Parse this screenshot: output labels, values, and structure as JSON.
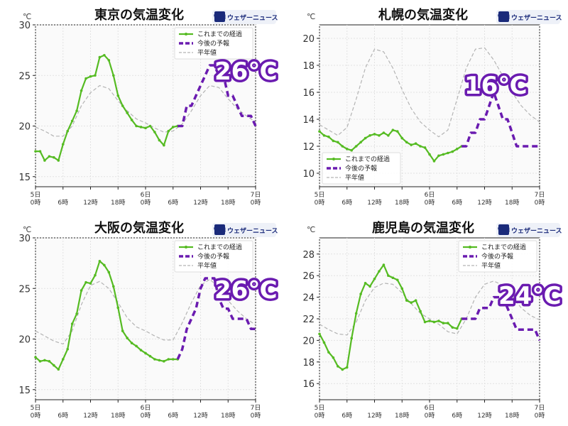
{
  "brand": "ウェザーニュース",
  "brand_mark": "WN",
  "unit": "℃",
  "legend": [
    "これまでの経過",
    "今後の予報",
    "平年値"
  ],
  "x_ticks": [
    [
      "5日",
      "0時"
    ],
    [
      "",
      "6時"
    ],
    [
      "",
      "12時"
    ],
    [
      "",
      "18時"
    ],
    [
      "6日",
      "0時"
    ],
    [
      "",
      "6時"
    ],
    [
      "",
      "12時"
    ],
    [
      "",
      "18時"
    ],
    [
      "7日",
      "0時"
    ]
  ],
  "colors": {
    "observed": "#55bb22",
    "forecast": "#6a1bb0",
    "normal": "#b4b4b4",
    "brand": "#1a2a7a"
  },
  "chart_data": [
    {
      "type": "line",
      "title": "東京の気温変化",
      "callout": "26℃",
      "ylim": [
        14,
        30
      ],
      "yticks": [
        15,
        20,
        25,
        30
      ],
      "grid": true,
      "legend_position": "top-right",
      "x_unit": "hours from 5日 0時",
      "xlim": [
        0,
        48
      ],
      "series": [
        {
          "name": "これまでの経過",
          "x": [
            0,
            1,
            2,
            3,
            4,
            5,
            6,
            7,
            8,
            9,
            10,
            11,
            12,
            13,
            14,
            15,
            16,
            17,
            18,
            19,
            20,
            21,
            22,
            23,
            24,
            25,
            26,
            27,
            28,
            29,
            30,
            31
          ],
          "y": [
            17.5,
            17.5,
            16.6,
            17.0,
            16.9,
            16.6,
            18.2,
            19.5,
            20.5,
            21.5,
            23.5,
            24.7,
            24.9,
            25.0,
            26.8,
            27.0,
            26.5,
            25.0,
            23.0,
            22.0,
            21.3,
            20.6,
            20.0,
            19.9,
            19.8,
            20.0,
            19.4,
            18.6,
            18.1,
            19.5,
            19.9,
            20.0
          ]
        },
        {
          "name": "今後の予報",
          "x": [
            31,
            32,
            33,
            34,
            35,
            36,
            37,
            38,
            39,
            40,
            41,
            42,
            43,
            44,
            45,
            46,
            47,
            48
          ],
          "y": [
            20.0,
            20.0,
            22.0,
            22.0,
            23.0,
            24.0,
            25.0,
            26.0,
            26.0,
            25.0,
            25.0,
            23.0,
            23.0,
            22.0,
            21.0,
            21.0,
            21.0,
            20.0
          ]
        },
        {
          "name": "平年値",
          "x": [
            0,
            2,
            4,
            6,
            8,
            10,
            12,
            14,
            16,
            18,
            20,
            22,
            24,
            26,
            28,
            30,
            32,
            34,
            36,
            38,
            40,
            42,
            44,
            46,
            48
          ],
          "y": [
            19.9,
            19.5,
            19.0,
            19.0,
            20.0,
            22.0,
            23.3,
            24.0,
            23.7,
            22.5,
            21.5,
            20.7,
            20.3,
            19.8,
            19.4,
            19.5,
            20.2,
            21.5,
            23.0,
            24.0,
            23.8,
            22.7,
            21.7,
            21.0,
            20.4
          ]
        }
      ]
    },
    {
      "type": "line",
      "title": "札幌の気温変化",
      "callout": "16℃",
      "ylim": [
        9,
        21
      ],
      "yticks": [
        10,
        12,
        14,
        16,
        18,
        20
      ],
      "grid": true,
      "legend_position": "bottom-left",
      "x_unit": "hours from 5日 0時",
      "xlim": [
        0,
        48
      ],
      "series": [
        {
          "name": "これまでの経過",
          "x": [
            0,
            1,
            2,
            3,
            4,
            5,
            6,
            7,
            8,
            9,
            10,
            11,
            12,
            13,
            14,
            15,
            16,
            17,
            18,
            19,
            20,
            21,
            22,
            23,
            24,
            25,
            26,
            27,
            28,
            29,
            30,
            31
          ],
          "y": [
            13.1,
            12.8,
            12.7,
            12.4,
            12.3,
            12.0,
            11.8,
            11.7,
            12.0,
            12.3,
            12.6,
            12.8,
            12.9,
            12.8,
            13.0,
            12.8,
            13.2,
            13.1,
            12.6,
            12.3,
            12.1,
            12.2,
            12.0,
            11.9,
            11.4,
            10.9,
            11.3,
            11.4,
            11.5,
            11.6,
            11.8,
            12.0
          ]
        },
        {
          "name": "今後の予報",
          "x": [
            31,
            32,
            33,
            34,
            35,
            36,
            37,
            38,
            39,
            40,
            41,
            42,
            43,
            44,
            45,
            46,
            47,
            48
          ],
          "y": [
            12.0,
            12.0,
            13.0,
            13.0,
            14.0,
            14.0,
            15.0,
            16.0,
            15.0,
            14.0,
            14.0,
            13.0,
            12.0,
            12.0,
            12.0,
            12.0,
            12.0,
            12.0
          ]
        },
        {
          "name": "平年値",
          "x": [
            0,
            2,
            4,
            6,
            8,
            10,
            12,
            14,
            16,
            18,
            20,
            22,
            24,
            26,
            28,
            30,
            32,
            34,
            36,
            38,
            40,
            42,
            44,
            46,
            48
          ],
          "y": [
            13.6,
            13.2,
            12.8,
            13.4,
            15.5,
            17.8,
            19.2,
            19.0,
            17.8,
            16.2,
            14.8,
            13.8,
            13.2,
            12.7,
            13.2,
            15.5,
            17.8,
            19.2,
            19.3,
            18.4,
            17.2,
            16.0,
            15.0,
            14.3,
            13.8
          ]
        }
      ]
    },
    {
      "type": "line",
      "title": "大阪の気温変化",
      "callout": "26℃",
      "ylim": [
        14,
        30
      ],
      "yticks": [
        15,
        20,
        25,
        30
      ],
      "grid": true,
      "legend_position": "top-right",
      "x_unit": "hours from 5日 0時",
      "xlim": [
        0,
        48
      ],
      "series": [
        {
          "name": "これまでの経過",
          "x": [
            0,
            1,
            2,
            3,
            4,
            5,
            6,
            7,
            8,
            9,
            10,
            11,
            12,
            13,
            14,
            15,
            16,
            17,
            18,
            19,
            20,
            21,
            22,
            23,
            24,
            25,
            26,
            27,
            28,
            29,
            30,
            31
          ],
          "y": [
            18.2,
            17.8,
            17.9,
            17.8,
            17.4,
            17.0,
            18.0,
            19.0,
            21.5,
            22.5,
            24.8,
            25.6,
            25.5,
            26.3,
            27.7,
            27.3,
            26.6,
            25.2,
            23.1,
            20.8,
            20.1,
            19.6,
            19.3,
            18.9,
            18.6,
            18.3,
            18.0,
            17.9,
            17.8,
            18.0,
            18.0,
            18.0
          ]
        },
        {
          "name": "今後の予報",
          "x": [
            31,
            32,
            33,
            34,
            35,
            36,
            37,
            38,
            39,
            40,
            41,
            42,
            43,
            44,
            45,
            46,
            47,
            48
          ],
          "y": [
            18.0,
            19.0,
            21.0,
            22.0,
            23.0,
            25.0,
            26.0,
            26.0,
            26.0,
            24.0,
            23.0,
            23.0,
            22.0,
            22.0,
            22.0,
            22.0,
            21.0,
            21.0
          ]
        },
        {
          "name": "平年値",
          "x": [
            0,
            2,
            4,
            6,
            8,
            10,
            12,
            14,
            16,
            18,
            20,
            22,
            24,
            26,
            28,
            30,
            32,
            34,
            36,
            38,
            40,
            42,
            44,
            46,
            48
          ],
          "y": [
            20.8,
            20.3,
            19.8,
            19.5,
            20.8,
            23.4,
            25.3,
            25.7,
            25.0,
            23.6,
            22.1,
            21.2,
            20.8,
            20.3,
            19.9,
            19.9,
            21.6,
            23.6,
            25.3,
            25.9,
            25.1,
            23.8,
            22.8,
            22.0,
            21.4
          ]
        }
      ]
    },
    {
      "type": "line",
      "title": "鹿児島の気温変化",
      "callout": "24℃",
      "ylim": [
        14.5,
        29.5
      ],
      "yticks": [
        16,
        18,
        20,
        22,
        24,
        26,
        28
      ],
      "grid": true,
      "legend_position": "top-right",
      "x_unit": "hours from 5日 0時",
      "xlim": [
        0,
        48
      ],
      "series": [
        {
          "name": "これまでの経過",
          "x": [
            0,
            1,
            2,
            3,
            4,
            5,
            6,
            7,
            8,
            9,
            10,
            11,
            12,
            13,
            14,
            15,
            16,
            17,
            18,
            19,
            20,
            21,
            22,
            23,
            24,
            25,
            26,
            27,
            28,
            29,
            30,
            31
          ],
          "y": [
            20.6,
            19.8,
            18.9,
            18.4,
            17.6,
            17.3,
            17.5,
            20.2,
            22.5,
            24.3,
            25.3,
            25.0,
            25.7,
            26.4,
            27.0,
            26.0,
            25.8,
            25.6,
            24.8,
            23.7,
            23.5,
            23.7,
            22.7,
            21.7,
            21.8,
            21.7,
            21.8,
            21.6,
            21.6,
            21.2,
            21.1,
            22.0
          ]
        },
        {
          "name": "今後の予報",
          "x": [
            31,
            32,
            33,
            34,
            35,
            36,
            37,
            38,
            39,
            40,
            41,
            42,
            43,
            44,
            45,
            46,
            47,
            48
          ],
          "y": [
            22.0,
            22.0,
            22.0,
            22.0,
            23.0,
            23.0,
            23.0,
            24.0,
            24.0,
            24.0,
            23.0,
            22.0,
            21.0,
            21.0,
            21.0,
            21.0,
            21.0,
            20.0
          ]
        },
        {
          "name": "平年値",
          "x": [
            0,
            2,
            4,
            6,
            8,
            10,
            12,
            14,
            16,
            18,
            20,
            22,
            24,
            26,
            28,
            30,
            32,
            34,
            36,
            38,
            40,
            42,
            44,
            46,
            48
          ],
          "y": [
            21.5,
            21.0,
            20.6,
            20.5,
            21.7,
            23.7,
            24.9,
            25.3,
            25.2,
            24.4,
            23.4,
            22.5,
            22.0,
            21.5,
            20.8,
            20.6,
            22.0,
            24.0,
            25.2,
            25.5,
            25.1,
            24.1,
            23.0,
            22.3,
            21.9
          ]
        }
      ]
    }
  ]
}
